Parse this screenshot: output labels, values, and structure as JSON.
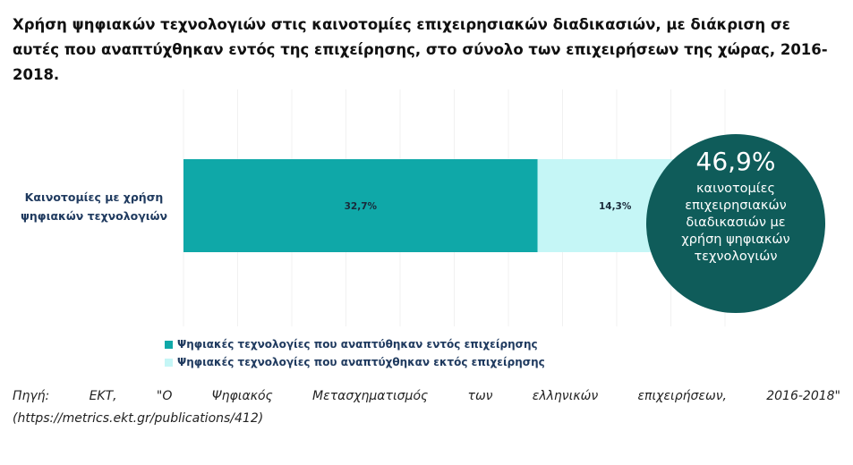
{
  "title": "Χρήση ψηφιακών τεχνολογιών στις καινοτομίες επιχειρησιακών διαδικασιών, με διάκριση σε αυτές που αναπτύχθηκαν εντός της επιχείρησης, στο σύνολο των επιχειρήσεων της χώρας, 2016-2018.",
  "chart_data": {
    "type": "bar",
    "orientation": "horizontal",
    "stacked": true,
    "categories": [
      "Καινοτομίες με χρήση ψηφιακών τεχνολογιών"
    ],
    "series": [
      {
        "name": "Ψηφιακές τεχνολογίες που αναπτύθηκαν εντός επιχείρησης",
        "values": [
          32.7
        ],
        "labels": [
          "32,7%"
        ],
        "color": "#0fa8a8"
      },
      {
        "name": "Ψηφιακές τεχνολογίες που αναπτύχθηκαν εκτός επιχείρησης",
        "values": [
          14.3
        ],
        "labels": [
          "14,3%"
        ],
        "color": "#c5f6f6"
      }
    ],
    "xlim": [
      0,
      50
    ],
    "grid": true,
    "legend_position": "bottom-left"
  },
  "callout": {
    "value": "46,9%",
    "text": "καινοτομίες επιχειρησιακών διαδικασιών με χρήση ψηφιακών τεχνολογιών",
    "color": "#0f5c5a"
  },
  "source": {
    "line1": "Πηγή: ΕΚΤ, \"Ο Ψηφιακός Μετασχηματισμός των ελληνικών επιχειρήσεων, 2016-2018\"",
    "line2": "(https://metrics.ekt.gr/publications/412)"
  }
}
